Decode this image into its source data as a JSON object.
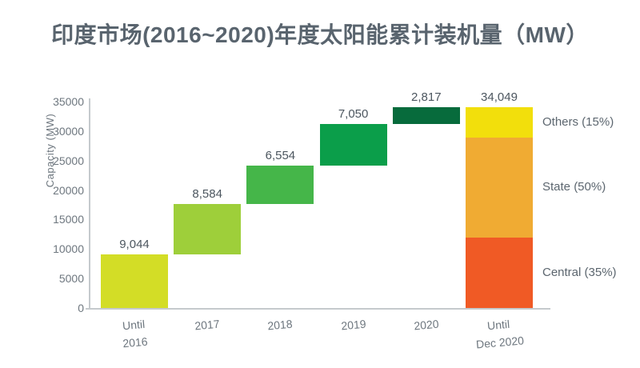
{
  "colors": {
    "title_text": "#59646e",
    "axis_text": "#6e777f",
    "value_text": "#4c565f",
    "side_label_text": "#5c666f",
    "axis_line": "#c5cacd",
    "background": "#ffffff"
  },
  "chart_data": {
    "type": "bar",
    "subtype": "waterfall-with-stacked-total",
    "title": "印度市场(2016~2020)年度太阳能累计装机量（MW）",
    "ylabel": "Capacity (MW)",
    "ylim": [
      0,
      35000
    ],
    "yticks": [
      0,
      5000,
      10000,
      15000,
      20000,
      25000,
      30000,
      35000
    ],
    "grid": false,
    "categories": [
      [
        "Until",
        "2016"
      ],
      [
        "2017"
      ],
      [
        "2018"
      ],
      [
        "2019"
      ],
      [
        "2020"
      ],
      [
        "Until",
        "Dec 2020"
      ]
    ],
    "category_keys": [
      "until-2016",
      "2017",
      "2018",
      "2019",
      "2020",
      "until-dec-2020"
    ],
    "increments": [
      9044,
      8584,
      6554,
      7050,
      2817
    ],
    "increment_labels": [
      "9,044",
      "8,584",
      "6,554",
      "7,050",
      "2,817"
    ],
    "bar_colors": [
      "#d3dd26",
      "#9ecf3a",
      "#45b649",
      "#0b9e4a",
      "#076b3c"
    ],
    "total": 34049,
    "total_label": "34,049",
    "final_bar_segments": [
      {
        "label": "Central (35%)",
        "key": "central",
        "percent": 35,
        "color": "#f05a25"
      },
      {
        "label": "State (50%)",
        "key": "state",
        "percent": 50,
        "color": "#f0ab33"
      },
      {
        "label": "Others (15%)",
        "key": "others",
        "percent": 15,
        "color": "#f2df0c"
      }
    ],
    "legend_position": "right-of-final-bar"
  }
}
